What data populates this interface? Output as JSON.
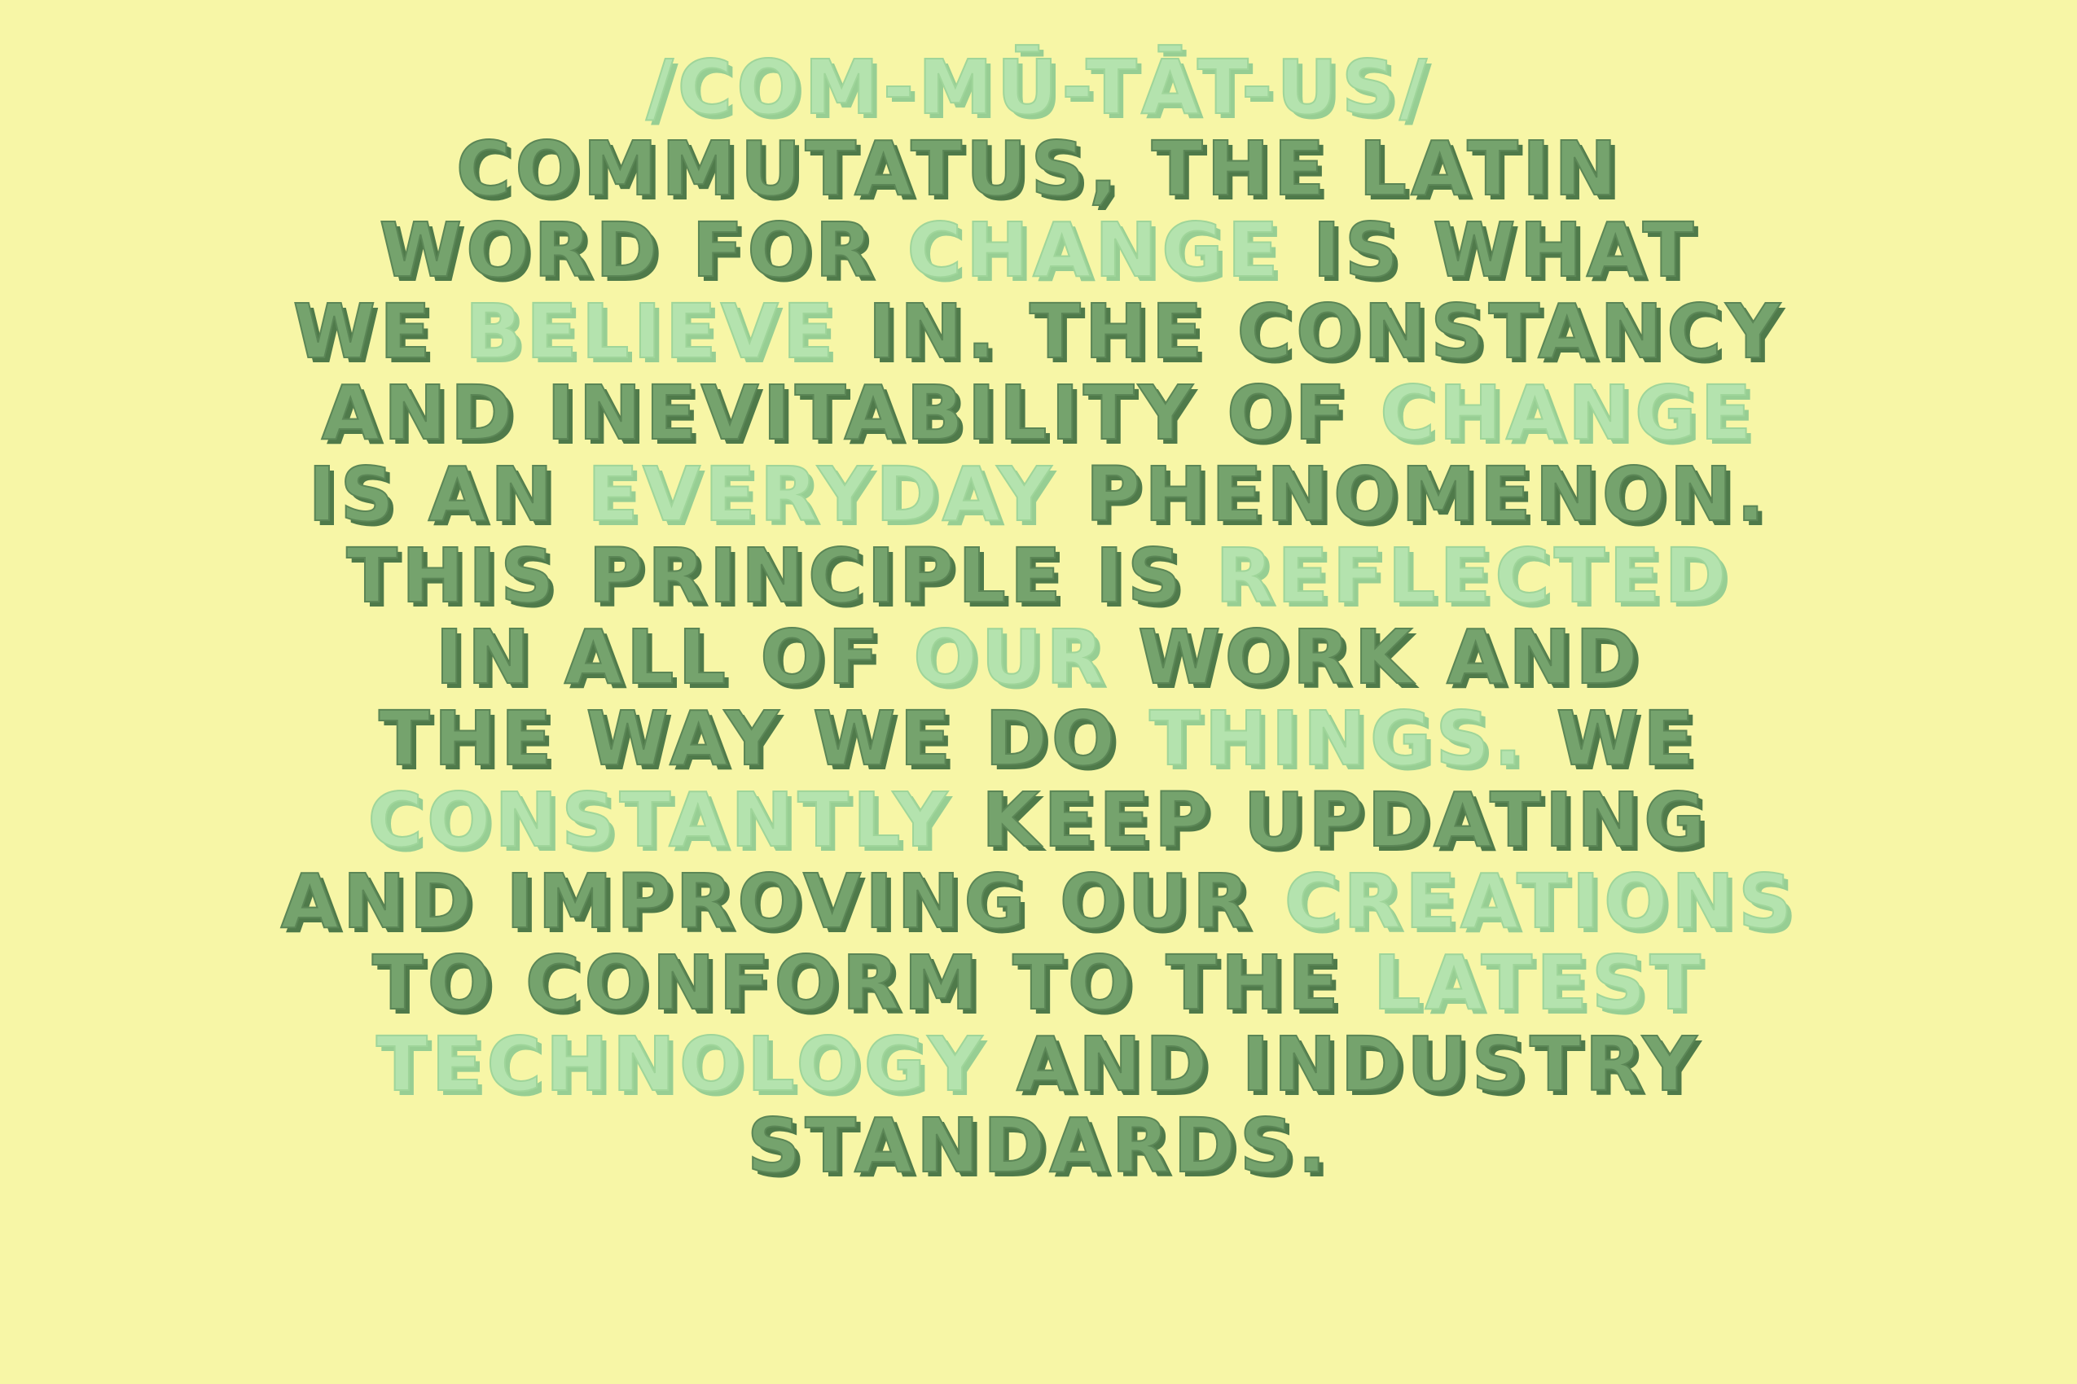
{
  "colors": {
    "background": "#f7f6a6",
    "dark_text": "#75a36d",
    "light_text": "#b4e3ae"
  },
  "pronunciation": "/COM-MŪ-TĀT-US/",
  "lines": [
    [
      {
        "text": "COMMUTATUS, THE LATIN",
        "emphasis": false
      }
    ],
    [
      {
        "text": "WORD FOR ",
        "emphasis": false
      },
      {
        "text": "CHANGE",
        "emphasis": true
      },
      {
        "text": " IS WHAT",
        "emphasis": false
      }
    ],
    [
      {
        "text": "WE ",
        "emphasis": false
      },
      {
        "text": "BELIEVE",
        "emphasis": true
      },
      {
        "text": " IN. THE CONSTANCY",
        "emphasis": false
      }
    ],
    [
      {
        "text": "AND INEVITABILITY OF ",
        "emphasis": false
      },
      {
        "text": "CHANGE",
        "emphasis": true
      }
    ],
    [
      {
        "text": "IS AN ",
        "emphasis": false
      },
      {
        "text": "EVERYDAY",
        "emphasis": true
      },
      {
        "text": " PHENOMENON.",
        "emphasis": false
      }
    ],
    [
      {
        "text": "THIS PRINCIPLE IS ",
        "emphasis": false
      },
      {
        "text": "REFLECTED",
        "emphasis": true
      }
    ],
    [
      {
        "text": "IN ALL OF ",
        "emphasis": false
      },
      {
        "text": "OUR",
        "emphasis": true
      },
      {
        "text": " WORK AND",
        "emphasis": false
      }
    ],
    [
      {
        "text": "THE WAY WE DO ",
        "emphasis": false
      },
      {
        "text": "THINGS.",
        "emphasis": true
      },
      {
        "text": " WE",
        "emphasis": false
      }
    ],
    [
      {
        "text": "CONSTANTLY",
        "emphasis": true
      },
      {
        "text": " KEEP UPDATING",
        "emphasis": false
      }
    ],
    [
      {
        "text": "AND IMPROVING OUR ",
        "emphasis": false
      },
      {
        "text": "CREATIONS",
        "emphasis": true
      }
    ],
    [
      {
        "text": "TO CONFORM TO THE ",
        "emphasis": false
      },
      {
        "text": "LATEST",
        "emphasis": true
      }
    ],
    [
      {
        "text": "TECHNOLOGY",
        "emphasis": true
      },
      {
        "text": " AND INDUSTRY",
        "emphasis": false
      }
    ],
    [
      {
        "text": "STANDARDS.",
        "emphasis": false
      }
    ]
  ]
}
